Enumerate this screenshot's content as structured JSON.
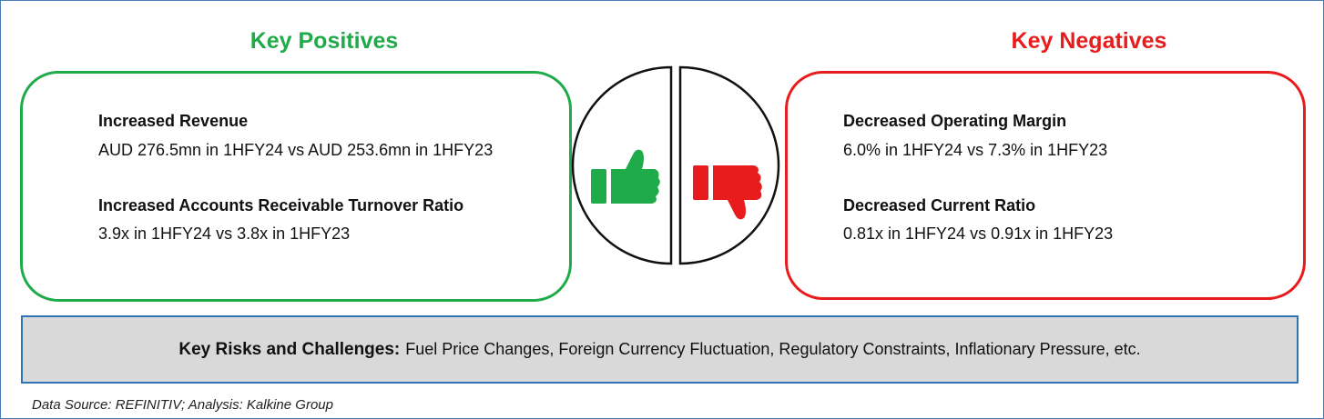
{
  "positives": {
    "title": "Key Positives",
    "items": [
      {
        "heading": "Increased Revenue",
        "detail": "AUD 276.5mn in 1HFY24 vs AUD 253.6mn in 1HFY23"
      },
      {
        "heading": "Increased Accounts Receivable Turnover Ratio",
        "detail": "3.9x in 1HFY24 vs 3.8x in 1HFY23"
      }
    ]
  },
  "negatives": {
    "title": "Key Negatives",
    "items": [
      {
        "heading": "Decreased Operating Margin",
        "detail": "6.0% in 1HFY24 vs 7.3% in 1HFY23"
      },
      {
        "heading": "Decreased Current Ratio",
        "detail": "0.81x in 1HFY24 vs 0.91x in 1HFY23"
      }
    ]
  },
  "risks": {
    "label": "Key Risks and Challenges:",
    "text": "Fuel Price Changes, Foreign Currency Fluctuation, Regulatory Constraints, Inflationary Pressure, etc."
  },
  "footer": "Data Source: REFINITIV; Analysis: Kalkine Group"
}
